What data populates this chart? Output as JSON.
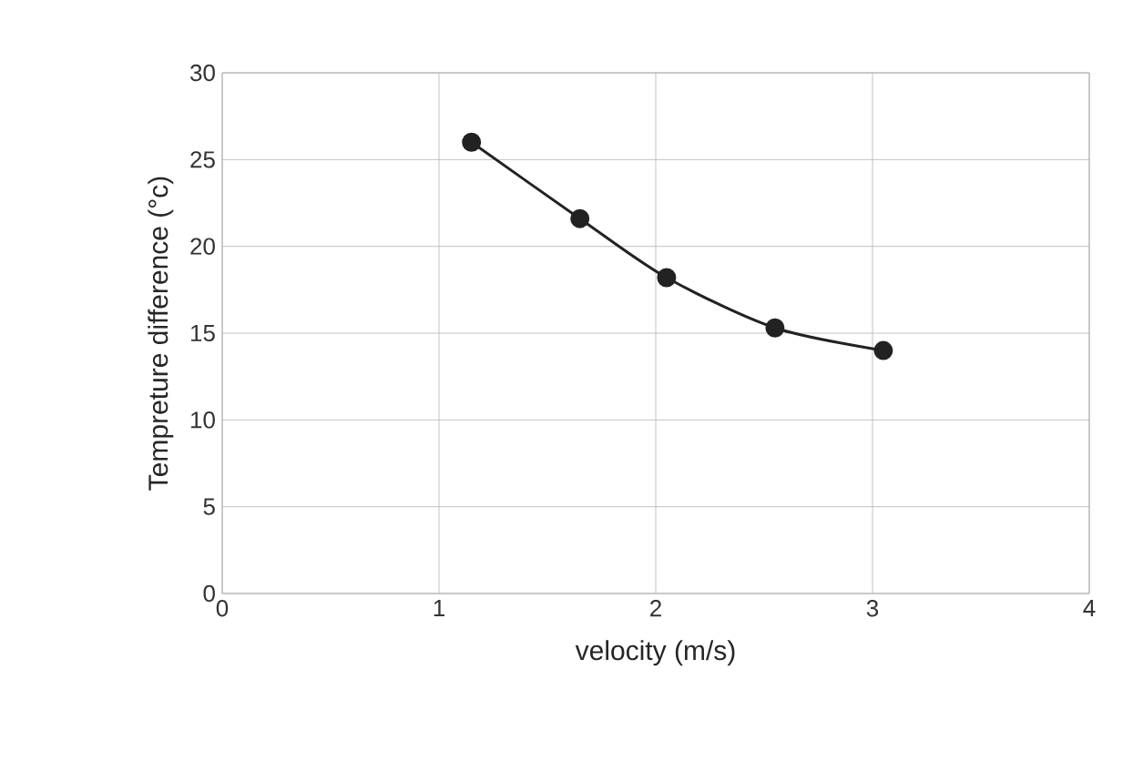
{
  "chart_data": {
    "type": "line",
    "xlabel": "velocity (m/s)",
    "ylabel": "Tempreture difference (°c)",
    "x": [
      1.15,
      1.65,
      2.05,
      2.55,
      3.05
    ],
    "series": [
      {
        "color": "#222222",
        "values": [
          26,
          21.6,
          18.2,
          15.3,
          14.0
        ]
      }
    ],
    "xlim": [
      0,
      4
    ],
    "ylim": [
      0,
      30
    ],
    "xticks": [
      0,
      1,
      2,
      3,
      4
    ],
    "yticks": [
      0,
      5,
      10,
      15,
      20,
      25,
      30
    ],
    "grid": true,
    "marker": "circle",
    "line_style": "solid"
  }
}
